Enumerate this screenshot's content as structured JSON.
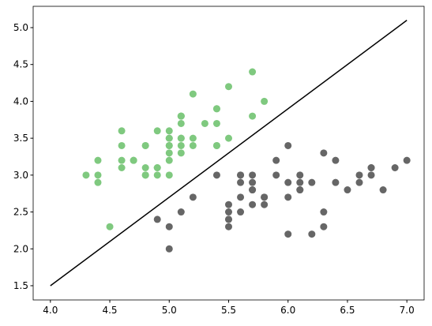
{
  "chart_data": {
    "type": "scatter",
    "xlim": [
      3.855,
      7.145
    ],
    "ylim": [
      1.307,
      5.289
    ],
    "xticks": [
      {
        "value": 4,
        "label": "4.0"
      },
      4.5,
      {
        "value": 5,
        "label": "5.0"
      },
      5.5,
      {
        "value": 6,
        "label": "6.0"
      },
      6.5,
      {
        "value": 7,
        "label": "7.0"
      }
    ],
    "yticks": [
      1.5,
      {
        "value": 2,
        "label": "2.0"
      },
      2.5,
      {
        "value": 3,
        "label": "3.0"
      },
      3.5,
      {
        "value": 4,
        "label": "4.0"
      },
      4.5,
      {
        "value": 5,
        "label": "5.0"
      }
    ],
    "series": [
      {
        "type": "scatter",
        "color": "#7fc97f",
        "x": [
          5.1,
          4.9,
          4.7,
          4.6,
          5.0,
          5.4,
          4.6,
          5.0,
          4.4,
          4.9,
          5.4,
          4.8,
          4.8,
          4.3,
          5.8,
          5.7,
          5.4,
          5.1,
          5.7,
          5.1,
          5.4,
          5.1,
          4.6,
          5.1,
          4.8,
          5.0,
          5.0,
          5.2,
          5.2,
          4.7,
          4.8,
          5.4,
          5.2,
          5.5,
          4.9,
          5.0,
          5.5,
          4.9,
          4.4,
          5.1,
          5.0,
          4.5,
          4.4,
          5.0,
          5.1,
          4.8,
          5.1,
          4.6,
          5.3,
          5.0
        ],
        "values": [
          3.5,
          3.0,
          3.2,
          3.1,
          3.6,
          3.9,
          3.4,
          3.4,
          2.9,
          3.1,
          3.7,
          3.4,
          3.0,
          3.0,
          4.0,
          4.4,
          3.9,
          3.5,
          3.8,
          3.8,
          3.4,
          3.7,
          3.6,
          3.3,
          3.4,
          3.0,
          3.4,
          3.5,
          3.4,
          3.2,
          3.1,
          3.4,
          4.1,
          4.2,
          3.1,
          3.2,
          3.5,
          3.6,
          3.0,
          3.4,
          3.5,
          2.3,
          3.2,
          3.5,
          3.8,
          3.0,
          3.8,
          3.2,
          3.7,
          3.3
        ]
      },
      {
        "type": "scatter",
        "color": "#666666",
        "x": [
          7.0,
          6.4,
          6.9,
          5.5,
          6.5,
          5.7,
          6.3,
          4.9,
          6.6,
          5.2,
          5.0,
          5.9,
          6.0,
          6.1,
          5.6,
          6.7,
          5.6,
          5.8,
          6.2,
          5.6,
          5.9,
          6.1,
          6.3,
          6.1,
          6.4,
          6.6,
          6.8,
          6.7,
          6.0,
          5.7,
          5.5,
          5.5,
          5.8,
          6.0,
          5.4,
          6.0,
          6.7,
          6.3,
          5.6,
          5.5,
          5.5,
          6.1,
          5.8,
          5.0,
          5.6,
          5.7,
          5.7,
          6.2,
          5.1,
          5.7
        ],
        "values": [
          3.2,
          3.2,
          3.1,
          2.3,
          2.8,
          2.8,
          3.3,
          2.4,
          2.9,
          2.7,
          2.0,
          3.0,
          2.2,
          2.9,
          2.9,
          3.1,
          3.0,
          2.7,
          2.2,
          2.5,
          3.2,
          2.8,
          2.5,
          2.8,
          2.9,
          3.0,
          2.8,
          3.0,
          2.9,
          2.6,
          2.4,
          2.4,
          2.7,
          2.7,
          3.0,
          3.4,
          3.1,
          2.3,
          3.0,
          2.5,
          2.6,
          3.0,
          2.6,
          2.3,
          2.7,
          3.0,
          2.9,
          2.9,
          2.5,
          2.8
        ]
      },
      {
        "type": "line",
        "color": "#000000",
        "x": [
          4.0,
          7.0
        ],
        "values": [
          1.5,
          5.1
        ]
      }
    ]
  }
}
